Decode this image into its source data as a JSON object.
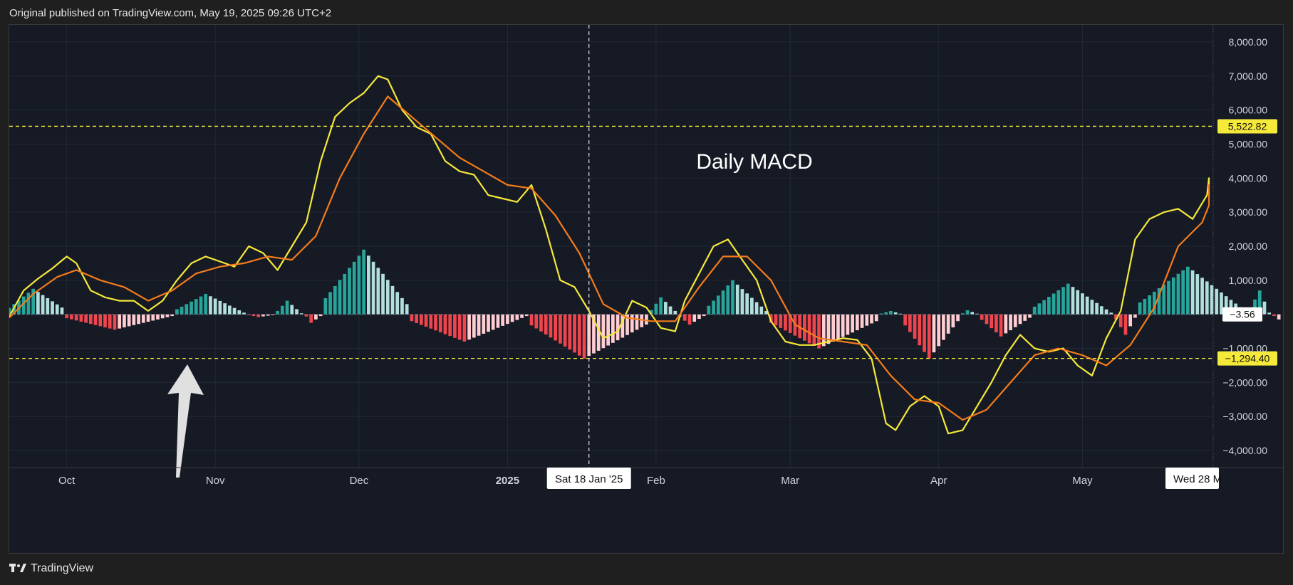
{
  "header": {
    "published": "Original published on TradingView.com, May 19, 2025 09:26 UTC+2"
  },
  "footer": {
    "brand": "TradingView"
  },
  "colors": {
    "bg": "#161a25",
    "grid": "#232838",
    "macd": "#f5e93a",
    "signal": "#f57c1b",
    "hist_pos_strong": "#26a69a",
    "hist_pos_weak": "#b2dfdb",
    "hist_neg_strong": "#f0454d",
    "hist_neg_weak": "#ffcdd2",
    "hline": "#f5e93a"
  },
  "chart_data": {
    "type": "line",
    "title": "Daily MACD",
    "y_ticks": [
      8000,
      7000,
      6000,
      5000,
      4000,
      3000,
      2000,
      1000,
      -1000,
      -2000,
      -3000,
      -4000
    ],
    "y_tick_labels": [
      "8,000.00",
      "7,000.00",
      "6,000.00",
      "5,000.00",
      "4,000.00",
      "3,000.00",
      "2,000.00",
      "1,000.00",
      "−1,000.00",
      "−2,000.00",
      "−3,000.00",
      "−4,000.00"
    ],
    "ylim": [
      -4500,
      8500
    ],
    "x_range": [
      "2024-09-19",
      "2025-05-28"
    ],
    "x_ticks": [
      {
        "date": "2024-10-01",
        "label": "Oct",
        "bold": false
      },
      {
        "date": "2024-11-01",
        "label": "Nov",
        "bold": false
      },
      {
        "date": "2024-12-01",
        "label": "Dec",
        "bold": false
      },
      {
        "date": "2025-01-01",
        "label": "2025",
        "bold": true
      },
      {
        "date": "2025-02-01",
        "label": "Feb",
        "bold": false
      },
      {
        "date": "2025-03-01",
        "label": "Mar",
        "bold": false
      },
      {
        "date": "2025-04-01",
        "label": "Apr",
        "bold": false
      },
      {
        "date": "2025-05-01",
        "label": "May",
        "bold": false
      }
    ],
    "crosshair": {
      "date": "2025-01-18",
      "label": "Sat 18 Jan '25"
    },
    "end_marker": {
      "date": "2025-05-28",
      "label": "Wed 28 M"
    },
    "horizontal_lines": [
      {
        "value": 5522.82,
        "label": "5,522.82"
      },
      {
        "value": -1294.4,
        "label": "−1,294.40"
      }
    ],
    "zero_label": "−3.56",
    "series": [
      {
        "name": "MACD",
        "points": [
          [
            "2024-09-19",
            -60
          ],
          [
            "2024-09-22",
            700
          ],
          [
            "2024-09-25",
            1050
          ],
          [
            "2024-09-28",
            1350
          ],
          [
            "2024-10-01",
            1700
          ],
          [
            "2024-10-03",
            1500
          ],
          [
            "2024-10-06",
            700
          ],
          [
            "2024-10-09",
            500
          ],
          [
            "2024-10-12",
            400
          ],
          [
            "2024-10-15",
            400
          ],
          [
            "2024-10-18",
            100
          ],
          [
            "2024-10-21",
            400
          ],
          [
            "2024-10-24",
            1000
          ],
          [
            "2024-10-27",
            1500
          ],
          [
            "2024-10-30",
            1700
          ],
          [
            "2024-11-02",
            1550
          ],
          [
            "2024-11-05",
            1400
          ],
          [
            "2024-11-08",
            2000
          ],
          [
            "2024-11-11",
            1800
          ],
          [
            "2024-11-14",
            1300
          ],
          [
            "2024-11-17",
            2000
          ],
          [
            "2024-11-20",
            2700
          ],
          [
            "2024-11-23",
            4500
          ],
          [
            "2024-11-26",
            5800
          ],
          [
            "2024-11-29",
            6200
          ],
          [
            "2024-12-02",
            6500
          ],
          [
            "2024-12-05",
            7000
          ],
          [
            "2024-12-07",
            6900
          ],
          [
            "2024-12-10",
            6000
          ],
          [
            "2024-12-13",
            5500
          ],
          [
            "2024-12-16",
            5300
          ],
          [
            "2024-12-19",
            4500
          ],
          [
            "2024-12-22",
            4200
          ],
          [
            "2024-12-25",
            4100
          ],
          [
            "2024-12-28",
            3500
          ],
          [
            "2024-12-31",
            3400
          ],
          [
            "2025-01-03",
            3300
          ],
          [
            "2025-01-06",
            3800
          ],
          [
            "2025-01-09",
            2500
          ],
          [
            "2025-01-12",
            1000
          ],
          [
            "2025-01-15",
            800
          ],
          [
            "2025-01-18",
            100
          ],
          [
            "2025-01-21",
            -700
          ],
          [
            "2025-01-24",
            -500
          ],
          [
            "2025-01-27",
            400
          ],
          [
            "2025-01-30",
            200
          ],
          [
            "2025-02-02",
            -400
          ],
          [
            "2025-02-05",
            -500
          ],
          [
            "2025-02-07",
            400
          ],
          [
            "2025-02-10",
            1200
          ],
          [
            "2025-02-13",
            2000
          ],
          [
            "2025-02-16",
            2200
          ],
          [
            "2025-02-19",
            1600
          ],
          [
            "2025-02-22",
            1000
          ],
          [
            "2025-02-25",
            -200
          ],
          [
            "2025-02-28",
            -800
          ],
          [
            "2025-03-03",
            -900
          ],
          [
            "2025-03-06",
            -900
          ],
          [
            "2025-03-09",
            -800
          ],
          [
            "2025-03-12",
            -700
          ],
          [
            "2025-03-15",
            -750
          ],
          [
            "2025-03-18",
            -1300
          ],
          [
            "2025-03-21",
            -3200
          ],
          [
            "2025-03-23",
            -3400
          ],
          [
            "2025-03-26",
            -2700
          ],
          [
            "2025-03-29",
            -2400
          ],
          [
            "2025-04-01",
            -2700
          ],
          [
            "2025-04-03",
            -3500
          ],
          [
            "2025-04-06",
            -3400
          ],
          [
            "2025-04-09",
            -2700
          ],
          [
            "2025-04-12",
            -2000
          ],
          [
            "2025-04-15",
            -1200
          ],
          [
            "2025-04-18",
            -600
          ],
          [
            "2025-04-21",
            -1000
          ],
          [
            "2025-04-24",
            -1100
          ],
          [
            "2025-04-27",
            -1000
          ],
          [
            "2025-04-30",
            -1500
          ],
          [
            "2025-05-03",
            -1800
          ],
          [
            "2025-05-06",
            -700
          ],
          [
            "2025-05-09",
            100
          ],
          [
            "2025-05-12",
            2200
          ],
          [
            "2025-05-15",
            2800
          ],
          [
            "2025-05-18",
            3000
          ],
          [
            "2025-05-21",
            3100
          ],
          [
            "2025-05-24",
            2800
          ],
          [
            "2025-05-27",
            3500
          ],
          [
            "2025-05-30",
            4000
          ],
          [
            "2025-06-02",
            4000
          ],
          [
            "2025-06-05",
            3900
          ],
          [
            "2025-06-08",
            3600
          ],
          [
            "2025-06-10",
            3500
          ]
        ]
      },
      {
        "name": "Signal",
        "points": [
          [
            "2024-09-19",
            -100
          ],
          [
            "2024-09-24",
            600
          ],
          [
            "2024-09-29",
            1100
          ],
          [
            "2024-10-03",
            1300
          ],
          [
            "2024-10-08",
            1000
          ],
          [
            "2024-10-13",
            800
          ],
          [
            "2024-10-18",
            400
          ],
          [
            "2024-10-23",
            700
          ],
          [
            "2024-10-28",
            1200
          ],
          [
            "2024-11-02",
            1400
          ],
          [
            "2024-11-07",
            1500
          ],
          [
            "2024-11-12",
            1700
          ],
          [
            "2024-11-17",
            1600
          ],
          [
            "2024-11-22",
            2300
          ],
          [
            "2024-11-27",
            4000
          ],
          [
            "2024-12-02",
            5300
          ],
          [
            "2024-12-07",
            6400
          ],
          [
            "2024-12-12",
            5800
          ],
          [
            "2024-12-17",
            5200
          ],
          [
            "2024-12-22",
            4600
          ],
          [
            "2024-12-27",
            4200
          ],
          [
            "2025-01-01",
            3800
          ],
          [
            "2025-01-06",
            3700
          ],
          [
            "2025-01-11",
            2900
          ],
          [
            "2025-01-16",
            1800
          ],
          [
            "2025-01-21",
            300
          ],
          [
            "2025-01-26",
            -100
          ],
          [
            "2025-01-31",
            -200
          ],
          [
            "2025-02-05",
            -200
          ],
          [
            "2025-02-10",
            800
          ],
          [
            "2025-02-15",
            1700
          ],
          [
            "2025-02-20",
            1700
          ],
          [
            "2025-02-25",
            1000
          ],
          [
            "2025-03-02",
            -300
          ],
          [
            "2025-03-07",
            -700
          ],
          [
            "2025-03-12",
            -800
          ],
          [
            "2025-03-17",
            -900
          ],
          [
            "2025-03-22",
            -1800
          ],
          [
            "2025-03-27",
            -2500
          ],
          [
            "2025-04-01",
            -2600
          ],
          [
            "2025-04-06",
            -3100
          ],
          [
            "2025-04-11",
            -2800
          ],
          [
            "2025-04-16",
            -2000
          ],
          [
            "2025-04-21",
            -1200
          ],
          [
            "2025-04-26",
            -1000
          ],
          [
            "2025-05-01",
            -1200
          ],
          [
            "2025-05-06",
            -1500
          ],
          [
            "2025-05-11",
            -900
          ],
          [
            "2025-05-16",
            200
          ],
          [
            "2025-05-21",
            2000
          ],
          [
            "2025-05-26",
            2700
          ],
          [
            "2025-05-31",
            3200
          ],
          [
            "2025-06-05",
            3800
          ],
          [
            "2025-06-10",
            3700
          ]
        ]
      }
    ],
    "histogram": [
      {
        "start": "2024-09-19",
        "end": "2024-10-01",
        "peak": 750,
        "end_value": 200
      },
      {
        "start": "2024-10-01",
        "end": "2024-10-24",
        "peak": -450,
        "end_value": -50
      },
      {
        "start": "2024-10-24",
        "end": "2024-11-08",
        "peak": 600,
        "end_value": 50
      },
      {
        "start": "2024-11-08",
        "end": "2024-11-14",
        "peak": -80,
        "end_value": -20
      },
      {
        "start": "2024-11-14",
        "end": "2024-11-20",
        "peak": 400,
        "end_value": 30
      },
      {
        "start": "2024-11-20",
        "end": "2024-11-24",
        "peak": -250,
        "end_value": -50
      },
      {
        "start": "2024-11-24",
        "end": "2024-12-12",
        "peak": 1900,
        "end_value": 300
      },
      {
        "start": "2024-12-12",
        "end": "2025-01-06",
        "peak": -800,
        "end_value": -50
      },
      {
        "start": "2025-01-06",
        "end": "2025-01-31",
        "peak": -1300,
        "end_value": -300
      },
      {
        "start": "2025-01-31",
        "end": "2025-02-06",
        "peak": 500,
        "end_value": 100
      },
      {
        "start": "2025-02-06",
        "end": "2025-02-12",
        "peak": -300,
        "end_value": -50
      },
      {
        "start": "2025-02-12",
        "end": "2025-02-25",
        "peak": 1000,
        "end_value": 100
      },
      {
        "start": "2025-02-25",
        "end": "2025-03-20",
        "peak": -1000,
        "end_value": -200
      },
      {
        "start": "2025-03-20",
        "end": "2025-03-25",
        "peak": 100,
        "end_value": 20
      },
      {
        "start": "2025-03-25",
        "end": "2025-04-06",
        "peak": -1300,
        "end_value": -200
      },
      {
        "start": "2025-04-06",
        "end": "2025-04-10",
        "peak": 120,
        "end_value": 20
      },
      {
        "start": "2025-04-10",
        "end": "2025-04-21",
        "peak": -650,
        "end_value": -100
      },
      {
        "start": "2025-04-21",
        "end": "2025-05-08",
        "peak": 900,
        "end_value": 50
      },
      {
        "start": "2025-05-08",
        "end": "2025-05-13",
        "peak": -600,
        "end_value": -100
      },
      {
        "start": "2025-05-13",
        "end": "2025-06-05",
        "peak": 1400,
        "end_value": 100
      },
      {
        "start": "2025-06-05",
        "end": "2025-06-10",
        "peak": 700,
        "end_value": 50
      },
      {
        "start": "2025-06-10",
        "end": "2025-06-12",
        "peak": -200,
        "end_value": -150
      }
    ]
  }
}
